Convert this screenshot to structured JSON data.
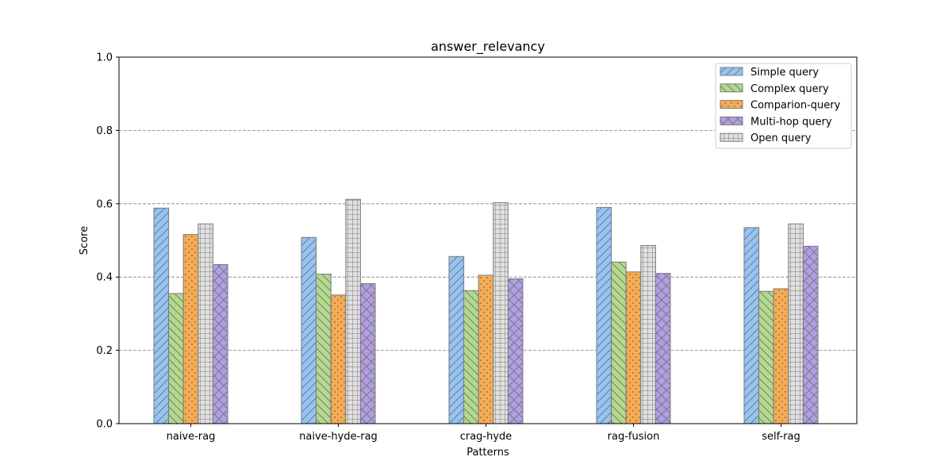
{
  "chart_data": {
    "type": "bar",
    "title": "answer_relevancy",
    "xlabel": "Patterns",
    "ylabel": "Score",
    "ylim": [
      0,
      1.0
    ],
    "yticks": [
      "0.0",
      "0.2",
      "0.4",
      "0.6",
      "0.8",
      "1.0"
    ],
    "grid": "y dashed at 0.2, 0.4, 0.6, 0.8",
    "legend_position": "top-right",
    "categories": [
      "naive-rag",
      "naive-hyde-rag",
      "crag-hyde",
      "rag-fusion",
      "self-rag"
    ],
    "series": [
      {
        "name": "Simple query",
        "color": "#93c4f5",
        "hatch": "diagonal",
        "values": [
          0.588,
          0.508,
          0.456,
          0.59,
          0.535
        ]
      },
      {
        "name": "Complex query",
        "color": "#b2da8b",
        "hatch": "back-diagonal",
        "values": [
          0.355,
          0.408,
          0.363,
          0.441,
          0.361
        ]
      },
      {
        "name": "Comparion-query",
        "color": "#f9ab4f",
        "hatch": "dots",
        "values": [
          0.516,
          0.351,
          0.405,
          0.414,
          0.368
        ]
      },
      {
        "name": "Open query",
        "color": "#e0e0e0",
        "hatch": "grid",
        "values": [
          0.545,
          0.612,
          0.603,
          0.486,
          0.545
        ]
      },
      {
        "name": "Multi-hop query",
        "color": "#b19ee6",
        "hatch": "cross",
        "values": [
          0.434,
          0.382,
          0.395,
          0.41,
          0.484
        ]
      }
    ],
    "legend_order": [
      "Simple query",
      "Complex query",
      "Comparion-query",
      "Multi-hop query",
      "Open query"
    ]
  }
}
